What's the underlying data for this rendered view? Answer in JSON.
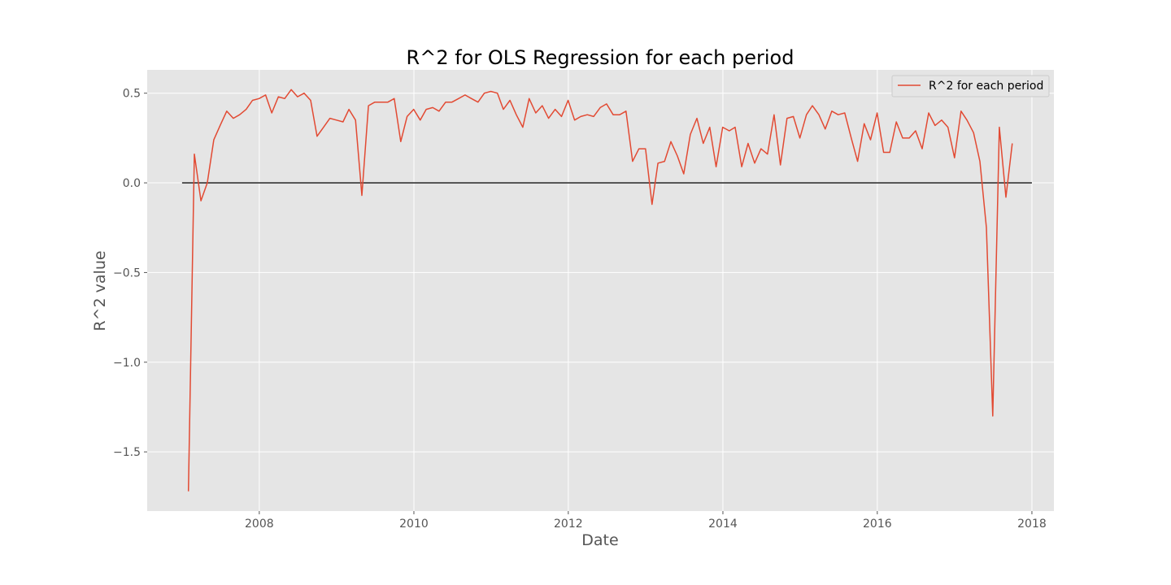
{
  "chart_data": {
    "type": "line",
    "title": "R^2 for OLS Regression for each period",
    "xlabel": "Date",
    "ylabel": "R^2 value",
    "xlim": [
      "2006-07-20",
      "2018-04-15"
    ],
    "ylim": [
      -1.83,
      0.63
    ],
    "x_ticks": [
      {
        "label": "2008",
        "date": "2008-01-01"
      },
      {
        "label": "2010",
        "date": "2010-01-01"
      },
      {
        "label": "2012",
        "date": "2012-01-01"
      },
      {
        "label": "2014",
        "date": "2014-01-01"
      },
      {
        "label": "2016",
        "date": "2016-01-01"
      },
      {
        "label": "2018",
        "date": "2018-01-01"
      }
    ],
    "y_ticks": [
      {
        "label": "0.5",
        "value": 0.5
      },
      {
        "label": "0.0",
        "value": 0.0
      },
      {
        "label": "−0.5",
        "value": -0.5
      },
      {
        "label": "−1.0",
        "value": -1.0
      },
      {
        "label": "−1.5",
        "value": -1.5
      }
    ],
    "grid": true,
    "legend_position": "top-right",
    "background": "#e5e5e5",
    "reference_line": {
      "y": 0.0,
      "x_start": "2007-01-01",
      "x_end": "2018-01-01",
      "color": "#333333"
    },
    "series": [
      {
        "name": "R^2 for each period",
        "color": "#e24a33",
        "x": [
          "2007-01-31",
          "2007-02-28",
          "2007-03-31",
          "2007-04-30",
          "2007-05-31",
          "2007-06-30",
          "2007-07-31",
          "2007-08-31",
          "2007-09-30",
          "2007-10-31",
          "2007-11-30",
          "2007-12-31",
          "2008-01-31",
          "2008-02-29",
          "2008-03-31",
          "2008-04-30",
          "2008-05-31",
          "2008-06-30",
          "2008-07-31",
          "2008-08-31",
          "2008-09-30",
          "2008-10-31",
          "2008-11-30",
          "2008-12-31",
          "2009-01-31",
          "2009-02-28",
          "2009-03-31",
          "2009-04-30",
          "2009-05-31",
          "2009-06-30",
          "2009-07-31",
          "2009-08-31",
          "2009-09-30",
          "2009-10-31",
          "2009-11-30",
          "2009-12-31",
          "2010-01-31",
          "2010-02-28",
          "2010-03-31",
          "2010-04-30",
          "2010-05-31",
          "2010-06-30",
          "2010-07-31",
          "2010-08-31",
          "2010-09-30",
          "2010-10-31",
          "2010-11-30",
          "2010-12-31",
          "2011-01-31",
          "2011-02-28",
          "2011-03-31",
          "2011-04-30",
          "2011-05-31",
          "2011-06-30",
          "2011-07-31",
          "2011-08-31",
          "2011-09-30",
          "2011-10-31",
          "2011-11-30",
          "2011-12-31",
          "2012-01-31",
          "2012-02-29",
          "2012-03-31",
          "2012-04-30",
          "2012-05-31",
          "2012-06-30",
          "2012-07-31",
          "2012-08-31",
          "2012-09-30",
          "2012-10-31",
          "2012-11-30",
          "2012-12-31",
          "2013-01-31",
          "2013-02-28",
          "2013-03-31",
          "2013-04-30",
          "2013-05-31",
          "2013-06-30",
          "2013-07-31",
          "2013-08-31",
          "2013-09-30",
          "2013-10-31",
          "2013-11-30",
          "2013-12-31",
          "2014-01-31",
          "2014-02-28",
          "2014-03-31",
          "2014-04-30",
          "2014-05-31",
          "2014-06-30",
          "2014-07-31",
          "2014-08-31",
          "2014-09-30",
          "2014-10-31",
          "2014-11-30",
          "2014-12-31",
          "2015-01-31",
          "2015-02-28",
          "2015-03-31",
          "2015-04-30",
          "2015-05-31",
          "2015-06-30",
          "2015-07-31",
          "2015-08-31",
          "2015-09-30",
          "2015-10-31",
          "2015-11-30",
          "2015-12-31",
          "2016-01-31",
          "2016-02-29",
          "2016-03-31",
          "2016-04-30",
          "2016-05-31",
          "2016-06-30",
          "2016-07-31",
          "2016-08-31",
          "2016-09-30",
          "2016-10-31",
          "2016-11-30",
          "2016-12-31",
          "2017-01-31",
          "2017-02-28",
          "2017-03-31",
          "2017-04-30",
          "2017-05-31",
          "2017-06-30",
          "2017-07-31",
          "2017-08-31",
          "2017-09-30"
        ],
        "values": [
          -1.72,
          0.16,
          -0.1,
          0.0,
          0.24,
          0.32,
          0.4,
          0.36,
          0.38,
          0.41,
          0.46,
          0.47,
          0.49,
          0.39,
          0.48,
          0.47,
          0.52,
          0.48,
          0.5,
          0.46,
          0.26,
          0.31,
          0.36,
          0.35,
          0.34,
          0.41,
          0.35,
          -0.07,
          0.43,
          0.45,
          0.45,
          0.45,
          0.47,
          0.23,
          0.37,
          0.41,
          0.35,
          0.41,
          0.42,
          0.4,
          0.45,
          0.45,
          0.47,
          0.49,
          0.47,
          0.45,
          0.5,
          0.51,
          0.5,
          0.41,
          0.46,
          0.38,
          0.31,
          0.47,
          0.39,
          0.43,
          0.36,
          0.41,
          0.37,
          0.46,
          0.35,
          0.37,
          0.38,
          0.37,
          0.42,
          0.44,
          0.38,
          0.38,
          0.4,
          0.12,
          0.19,
          0.19,
          -0.12,
          0.11,
          0.12,
          0.23,
          0.15,
          0.05,
          0.27,
          0.36,
          0.22,
          0.31,
          0.09,
          0.31,
          0.29,
          0.31,
          0.09,
          0.22,
          0.11,
          0.19,
          0.16,
          0.38,
          0.1,
          0.36,
          0.37,
          0.25,
          0.38,
          0.43,
          0.38,
          0.3,
          0.4,
          0.38,
          0.39,
          0.25,
          0.12,
          0.33,
          0.24,
          0.39,
          0.17,
          0.17,
          0.34,
          0.25,
          0.25,
          0.29,
          0.19,
          0.39,
          0.32,
          0.35,
          0.31,
          0.14,
          0.4,
          0.35,
          0.28,
          0.12,
          -0.25,
          -1.3,
          0.31,
          -0.08,
          0.22
        ]
      }
    ]
  }
}
